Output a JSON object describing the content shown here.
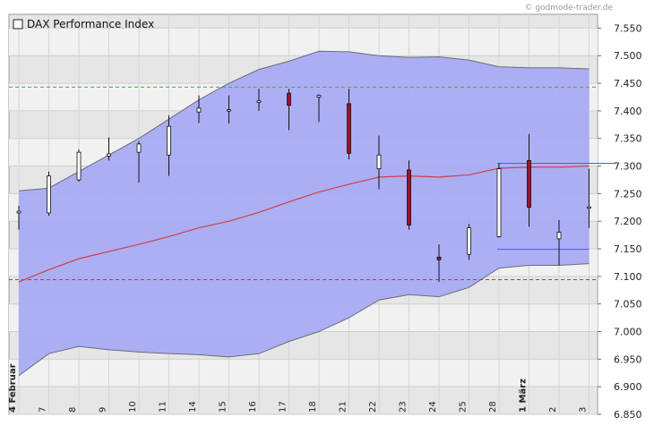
{
  "watermark": "© godmode-trader.de",
  "legend_label": "DAX Performance Index",
  "colors": {
    "band_fill": "#a9abf3",
    "band_edge": "#6b6b7a",
    "moving_average": "#d0404a",
    "candle_up": "#ffffff",
    "candle_down": "#a0102a",
    "resistance_dash": "#44aa44",
    "support_dash": "#cc3344",
    "channel": "#4a5ce0"
  },
  "chart_data": {
    "type": "candlestick",
    "title": "DAX Performance Index",
    "x_tick_labels": [
      "4 Februar",
      "7",
      "8",
      "9",
      "10",
      "11",
      "14",
      "15",
      "16",
      "17",
      "18",
      "21",
      "22",
      "23",
      "24",
      "25",
      "28",
      "1 März",
      "2",
      "3"
    ],
    "y_tick_labels": [
      "6.850",
      "6.900",
      "6.950",
      "7.000",
      "7.050",
      "7.100",
      "7.150",
      "7.200",
      "7.250",
      "7.300",
      "7.350",
      "7.400",
      "7.450",
      "7.500",
      "7.550"
    ],
    "ylim": [
      6850,
      7575
    ],
    "grid": true,
    "y_axis_side": "right",
    "candles": [
      {
        "date": "4 Februar",
        "open": 7215,
        "high": 7228,
        "low": 7185,
        "close": 7218
      },
      {
        "date": "7",
        "open": 7215,
        "high": 7290,
        "low": 7210,
        "close": 7282
      },
      {
        "date": "8",
        "open": 7275,
        "high": 7330,
        "low": 7272,
        "close": 7325
      },
      {
        "date": "9",
        "open": 7318,
        "high": 7352,
        "low": 7310,
        "close": 7322
      },
      {
        "date": "10",
        "open": 7325,
        "high": 7345,
        "low": 7270,
        "close": 7340
      },
      {
        "date": "11",
        "open": 7320,
        "high": 7392,
        "low": 7282,
        "close": 7372
      },
      {
        "date": "14",
        "open": 7398,
        "high": 7428,
        "low": 7378,
        "close": 7405
      },
      {
        "date": "15",
        "open": 7400,
        "high": 7428,
        "low": 7377,
        "close": 7402
      },
      {
        "date": "16",
        "open": 7415,
        "high": 7440,
        "low": 7400,
        "close": 7418
      },
      {
        "date": "17",
        "open": 7432,
        "high": 7440,
        "low": 7365,
        "close": 7410
      },
      {
        "date": "18",
        "open": 7425,
        "high": 7430,
        "low": 7380,
        "close": 7428
      },
      {
        "date": "21",
        "open": 7413,
        "high": 7440,
        "low": 7312,
        "close": 7323
      },
      {
        "date": "22",
        "open": 7295,
        "high": 7355,
        "low": 7258,
        "close": 7320
      },
      {
        "date": "23",
        "open": 7293,
        "high": 7310,
        "low": 7185,
        "close": 7193
      },
      {
        "date": "24",
        "open": 7135,
        "high": 7158,
        "low": 7090,
        "close": 7130
      },
      {
        "date": "25",
        "open": 7140,
        "high": 7195,
        "low": 7130,
        "close": 7188
      },
      {
        "date": "28",
        "open": 7172,
        "high": 7305,
        "low": 7170,
        "close": 7295
      },
      {
        "date": "1 März",
        "open": 7310,
        "high": 7358,
        "low": 7190,
        "close": 7225
      },
      {
        "date": "2",
        "open": 7168,
        "high": 7202,
        "low": 7120,
        "close": 7180
      },
      {
        "date": "3",
        "open": 7225,
        "high": 7295,
        "low": 7188,
        "close": 7226
      }
    ],
    "upper_band": [
      7255,
      7260,
      7290,
      7320,
      7350,
      7385,
      7420,
      7450,
      7475,
      7490,
      7508,
      7507,
      7500,
      7497,
      7498,
      7492,
      7480,
      7478,
      7478,
      7476
    ],
    "lower_band": [
      6920,
      6960,
      6973,
      6967,
      6963,
      6960,
      6958,
      6954,
      6960,
      6982,
      7000,
      7025,
      7057,
      7067,
      7063,
      7080,
      7115,
      7120,
      7120,
      7123
    ],
    "moving_average": [
      7090,
      7112,
      7132,
      7145,
      7158,
      7172,
      7188,
      7200,
      7216,
      7235,
      7253,
      7267,
      7280,
      7282,
      7280,
      7284,
      7296,
      7298,
      7298,
      7300
    ],
    "horizontal_lines": [
      {
        "value": 7443,
        "style": "dashed",
        "role": "resistance"
      },
      {
        "value": 7094,
        "style": "dashed",
        "role": "support"
      }
    ],
    "channel": {
      "start_date": "28",
      "top": 7305,
      "bottom": 7149
    }
  }
}
